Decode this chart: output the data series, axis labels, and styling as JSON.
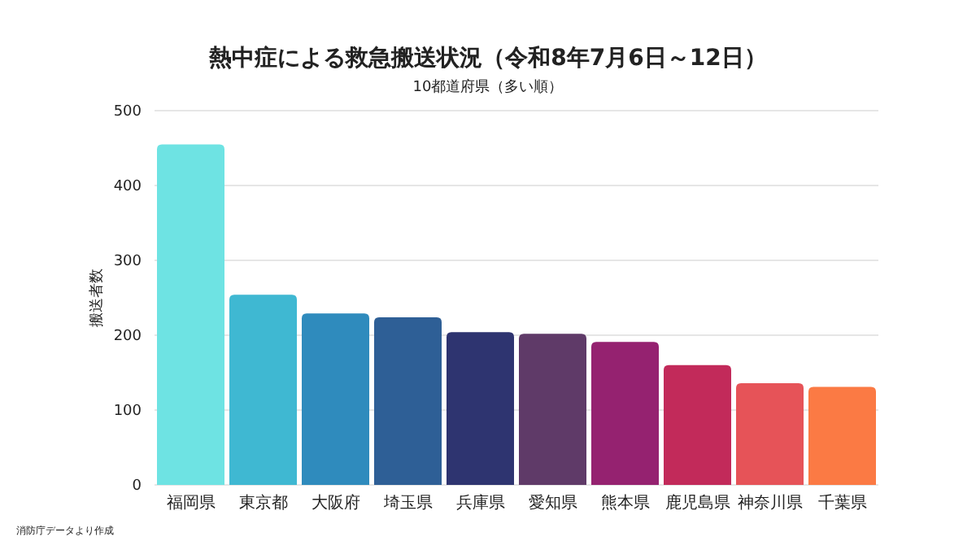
{
  "chart_data": {
    "type": "bar",
    "title": "熱中症による救急搬送状況（令和8年7月6日～12日）",
    "subtitle": "10都道府県（多い順）",
    "ylabel": "搬送者数",
    "categories": [
      "福岡県",
      "東京都",
      "大阪府",
      "埼玉県",
      "兵庫県",
      "愛知県",
      "熊本県",
      "鹿児島県",
      "神奈川県",
      "千葉県"
    ],
    "values": [
      455,
      254,
      229,
      224,
      204,
      202,
      191,
      160,
      136,
      131
    ],
    "colors": [
      "#6ee3e3",
      "#3fb8d2",
      "#2f8bbd",
      "#2e5f96",
      "#2e3470",
      "#5f3a68",
      "#952270",
      "#c22a5a",
      "#e65358",
      "#fb7a44"
    ],
    "ylim": [
      0,
      500
    ],
    "yticks": [
      0,
      100,
      200,
      300,
      400,
      500
    ],
    "grid": "y",
    "annotations": [
      "消防庁データより作成"
    ]
  }
}
